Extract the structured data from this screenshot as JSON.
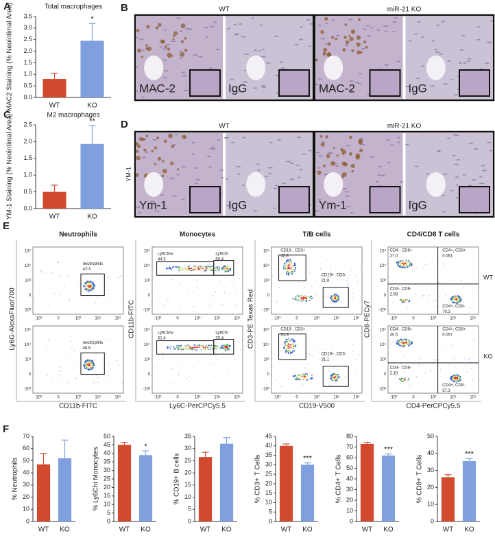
{
  "chart_data": [
    {
      "type": "bar",
      "panel": "A",
      "title": "Total macrophages",
      "ylabel": "MAC2 Staining (% Neointimal Area)",
      "categories": [
        "WT",
        "KO"
      ],
      "values": [
        0.8,
        2.45
      ],
      "errors": [
        0.25,
        0.75
      ],
      "colors": [
        "#d14a2e",
        "#7fa0dc"
      ],
      "significance": "*",
      "ylim": [
        0,
        3.5
      ],
      "yticks": [
        {
          "value": 0,
          "label": "0.0"
        },
        0.5,
        {
          "value": 1,
          "label": "1.0"
        },
        1.5,
        {
          "value": 2,
          "label": "2.0"
        },
        2.5,
        {
          "value": 3,
          "label": "3.0"
        },
        3.5
      ]
    },
    {
      "type": "bar",
      "panel": "C",
      "title": "M2 macrophages",
      "ylabel": "YM-1 Staining (% Neointimal Area)",
      "categories": [
        "WT",
        "KO"
      ],
      "values": [
        0.5,
        1.93
      ],
      "errors": [
        0.2,
        0.55
      ],
      "colors": [
        "#d14a2e",
        "#7fa0dc"
      ],
      "significance": "**",
      "ylim": [
        0,
        2.5
      ],
      "yticks": [
        {
          "value": 0,
          "label": "0.0"
        },
        0.5,
        {
          "value": 1,
          "label": "1.0"
        },
        1.5,
        {
          "value": 2,
          "label": "2.0"
        },
        2.5
      ]
    },
    {
      "type": "bar",
      "panel": "F",
      "ylabel": "% Neutrophils",
      "categories": [
        "WT",
        "KO"
      ],
      "values": [
        47,
        52
      ],
      "errors": [
        9,
        15
      ],
      "colors": [
        "#d14a2e",
        "#7fa0dc"
      ],
      "ylim": [
        0,
        70
      ],
      "yticks": [
        0,
        10,
        20,
        30,
        40,
        50,
        60,
        70
      ]
    },
    {
      "type": "bar",
      "ylabel": "% Ly6Chi Monocytes",
      "categories": [
        "WT",
        "KO"
      ],
      "values": [
        45,
        39
      ],
      "errors": [
        1.5,
        2.5
      ],
      "colors": [
        "#d14a2e",
        "#7fa0dc"
      ],
      "significance": "*",
      "ylim": [
        0,
        50
      ],
      "yticks": [
        0,
        5,
        10,
        15,
        20,
        25,
        30,
        35,
        40,
        45,
        50
      ]
    },
    {
      "type": "bar",
      "ylabel": "% CD19+ B cells",
      "categories": [
        "WT",
        "KO"
      ],
      "values": [
        26.5,
        32
      ],
      "errors": [
        2,
        2.5
      ],
      "colors": [
        "#d14a2e",
        "#7fa0dc"
      ],
      "ylim": [
        0,
        35
      ],
      "yticks": [
        0,
        5,
        10,
        15,
        20,
        25,
        30,
        35
      ]
    },
    {
      "type": "bar",
      "ylabel": "% CD3+ T Cells",
      "categories": [
        "WT",
        "KO"
      ],
      "values": [
        40,
        30
      ],
      "errors": [
        1,
        1
      ],
      "colors": [
        "#d14a2e",
        "#7fa0dc"
      ],
      "significance": "***",
      "ylim": [
        0,
        45
      ],
      "yticks": [
        0,
        5,
        10,
        15,
        20,
        25,
        30,
        35,
        40,
        45
      ]
    },
    {
      "type": "bar",
      "ylabel": "% CD4+ T Cells",
      "categories": [
        "WT",
        "KO"
      ],
      "values": [
        73,
        62
      ],
      "errors": [
        1.5,
        1.5
      ],
      "colors": [
        "#d14a2e",
        "#7fa0dc"
      ],
      "significance": "***",
      "ylim": [
        0,
        80
      ],
      "yticks": [
        0,
        10,
        20,
        30,
        40,
        50,
        60,
        70,
        80
      ]
    },
    {
      "type": "bar",
      "ylabel": "% CD8+ T Cells",
      "categories": [
        "WT",
        "KO"
      ],
      "values": [
        26,
        35.5
      ],
      "errors": [
        1.5,
        1.5
      ],
      "colors": [
        "#d14a2e",
        "#7fa0dc"
      ],
      "significance": "***",
      "ylim": [
        0,
        50
      ],
      "yticks": [
        0,
        10,
        20,
        30,
        40,
        50
      ]
    }
  ],
  "panel_b": {
    "letter": "B",
    "groups": [
      "WT",
      "miR-21 KO"
    ],
    "images": [
      "MAC-2",
      "IgG",
      "MAC-2",
      "IgG"
    ]
  },
  "panel_d": {
    "letter": "D",
    "groups": [
      "WT",
      "miR-21 KO"
    ],
    "side_label": "YM-1",
    "images": [
      "Ym-1",
      "IgG",
      "Ym-1",
      "IgG"
    ]
  },
  "panel_e": {
    "letter": "E",
    "row_labels": [
      "WT",
      "KO"
    ],
    "yticks": [
      "10⁵",
      "10⁴",
      "10³",
      "0",
      "-10³"
    ],
    "xticks": [
      "-10³",
      "0",
      "10³",
      "10⁴",
      "10⁵"
    ],
    "plots": [
      {
        "title": "Neutrophils",
        "xlabel": "CD11b-FITC",
        "ylabel": "Ly6G-AlexaFluor700",
        "rows": [
          [
            {
              "label": "neutrophils",
              "value": "47.3"
            }
          ],
          [
            {
              "label": "neutrophils",
              "value": "48.5"
            }
          ]
        ]
      },
      {
        "title": "Monocytes",
        "xlabel": "Ly6C-PerCPCy5.5",
        "ylabel": "CD11b-FITC",
        "rows": [
          [
            {
              "label": "Ly6Clow",
              "value": "44.3"
            },
            {
              "label": "Ly6Chi",
              "value": "50.4"
            }
          ],
          [
            {
              "label": "Ly6Clow",
              "value": "61.4"
            },
            {
              "label": "Ly6Chi",
              "value": "33.4"
            }
          ]
        ]
      },
      {
        "title": "T/B cells",
        "xlabel": "CD19-V500",
        "ylabel": "CD3-PE Texas Red",
        "rows": [
          [
            {
              "label": "CD19-, CD3+",
              "value": "42.8"
            },
            {
              "label": "CD19+, CD3-",
              "value": "21.8"
            }
          ],
          [
            {
              "label": "CD19-, CD3+",
              "value": "31.3"
            },
            {
              "label": "CD19+, CD3-",
              "value": "31.1"
            }
          ]
        ]
      },
      {
        "title": "CD4/CD8 T cells",
        "xlabel": "CD4-PerCPCy5.5",
        "ylabel": "CD8-PECy7",
        "rows": [
          [
            {
              "label": "CD4-, CD8+",
              "value": "27.0"
            },
            {
              "label": "CD4+, CD8+",
              "value": "0.061"
            },
            {
              "label": "CD4-, CD8-",
              "value": "2.58"
            },
            {
              "label": "CD4+, CD8-",
              "value": "70.3"
            }
          ],
          [
            {
              "label": "CD4-, CD8+",
              "value": "40.5"
            },
            {
              "label": "CD4+, CD8+",
              "value": "0.057"
            },
            {
              "label": "CD4-, CD8-",
              "value": "2.10"
            },
            {
              "label": "CD4+, CD8-",
              "value": "57.3"
            }
          ]
        ]
      }
    ]
  }
}
